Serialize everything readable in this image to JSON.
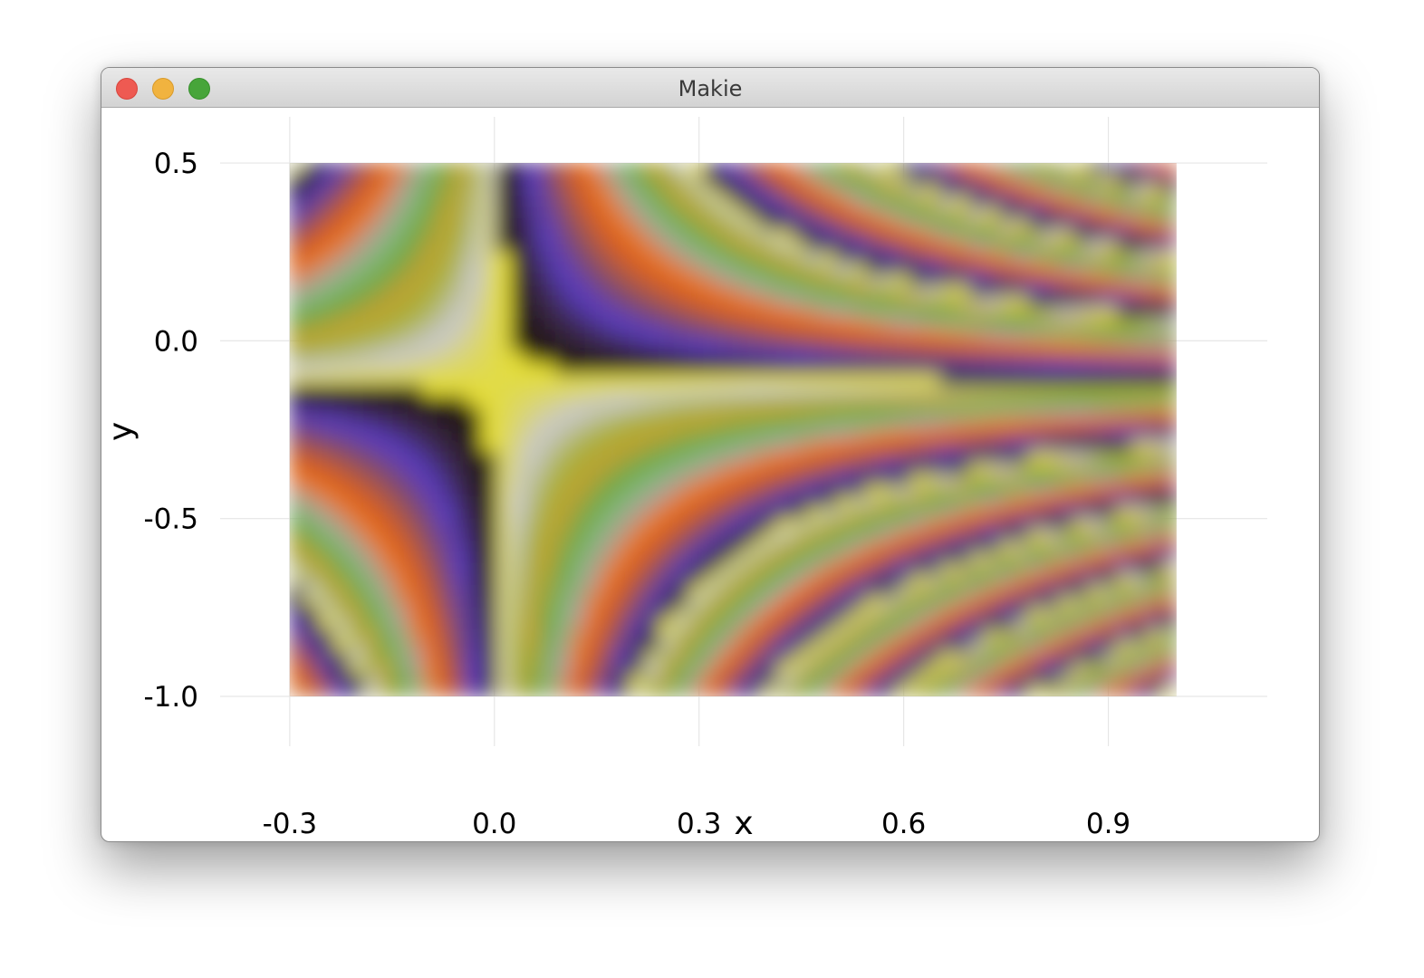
{
  "window": {
    "title": "Makie",
    "buttons": [
      {
        "name": "close",
        "color": "#ee5a52"
      },
      {
        "name": "minimize",
        "color": "#f1b33f"
      },
      {
        "name": "maximize",
        "color": "#47a53a"
      }
    ]
  },
  "chart_data": {
    "type": "heatmap",
    "title": "",
    "xlabel": "x",
    "ylabel": "y",
    "xlim": [
      -0.3,
      1.0
    ],
    "ylim": [
      -1.0,
      0.5
    ],
    "axis_limits": {
      "x": [
        -0.402,
        1.133
      ],
      "y": [
        -1.14,
        0.63
      ]
    },
    "xticks": [
      -0.3,
      0.0,
      0.3,
      0.6,
      0.9
    ],
    "xtick_labels": [
      "-0.3",
      "0.0",
      "0.3",
      "0.6",
      "0.9"
    ],
    "yticks": [
      -1.0,
      -0.5,
      0.0,
      0.5
    ],
    "ytick_labels": [
      "-1.0",
      "-0.5",
      "0.0",
      "0.5"
    ],
    "grid": true,
    "colormap": "gist_earth-like cyclic",
    "colormap_stops": [
      "#1a0e06",
      "#3c2a4a",
      "#5a3cc8",
      "#7a4a70",
      "#b05a40",
      "#e06018",
      "#e87a28",
      "#b0a0a0",
      "#82b878",
      "#6ea848",
      "#c0a030",
      "#a8b038",
      "#c8c8d0",
      "#e8e020"
    ]
  }
}
